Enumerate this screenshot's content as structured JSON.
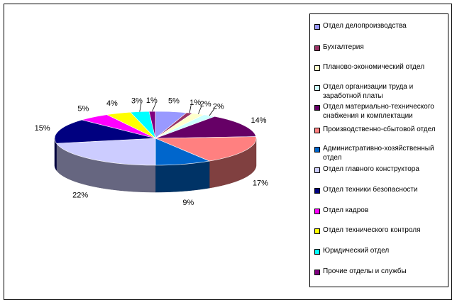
{
  "chart_data": {
    "type": "pie",
    "title": "",
    "categories": [
      "Отдел делопроизводства",
      "Бухгалтерия",
      "Планово-экономический отдел",
      "Отдел организации труда и заработной платы",
      "Отдел материально-технического снабжения и комплектации",
      "Производственно-сбытовой отдел",
      "Административно-хозяйственный отдел",
      "Отдел главного конструктора",
      "Отдел техники безопасности",
      "Отдел кадров",
      "Отдел технического контроля",
      "Юридический отдел",
      "Прочие отделы и службы"
    ],
    "values": [
      5,
      1,
      2,
      2,
      14,
      17,
      9,
      22,
      15,
      5,
      4,
      3,
      1
    ],
    "data_labels": [
      "5%",
      "1%",
      "2%",
      "2%",
      "14%",
      "17%",
      "9%",
      "22%",
      "15%",
      "5%",
      "4%",
      "3%",
      "1%"
    ],
    "colors": [
      "#9999FF",
      "#993366",
      "#FFFFCC",
      "#CCFFFF",
      "#660066",
      "#FF8080",
      "#0066CC",
      "#CCCCFF",
      "#000080",
      "#FF00FF",
      "#FFFF00",
      "#00FFFF",
      "#800080"
    ],
    "legend_position": "right",
    "style": "3d-pie"
  }
}
